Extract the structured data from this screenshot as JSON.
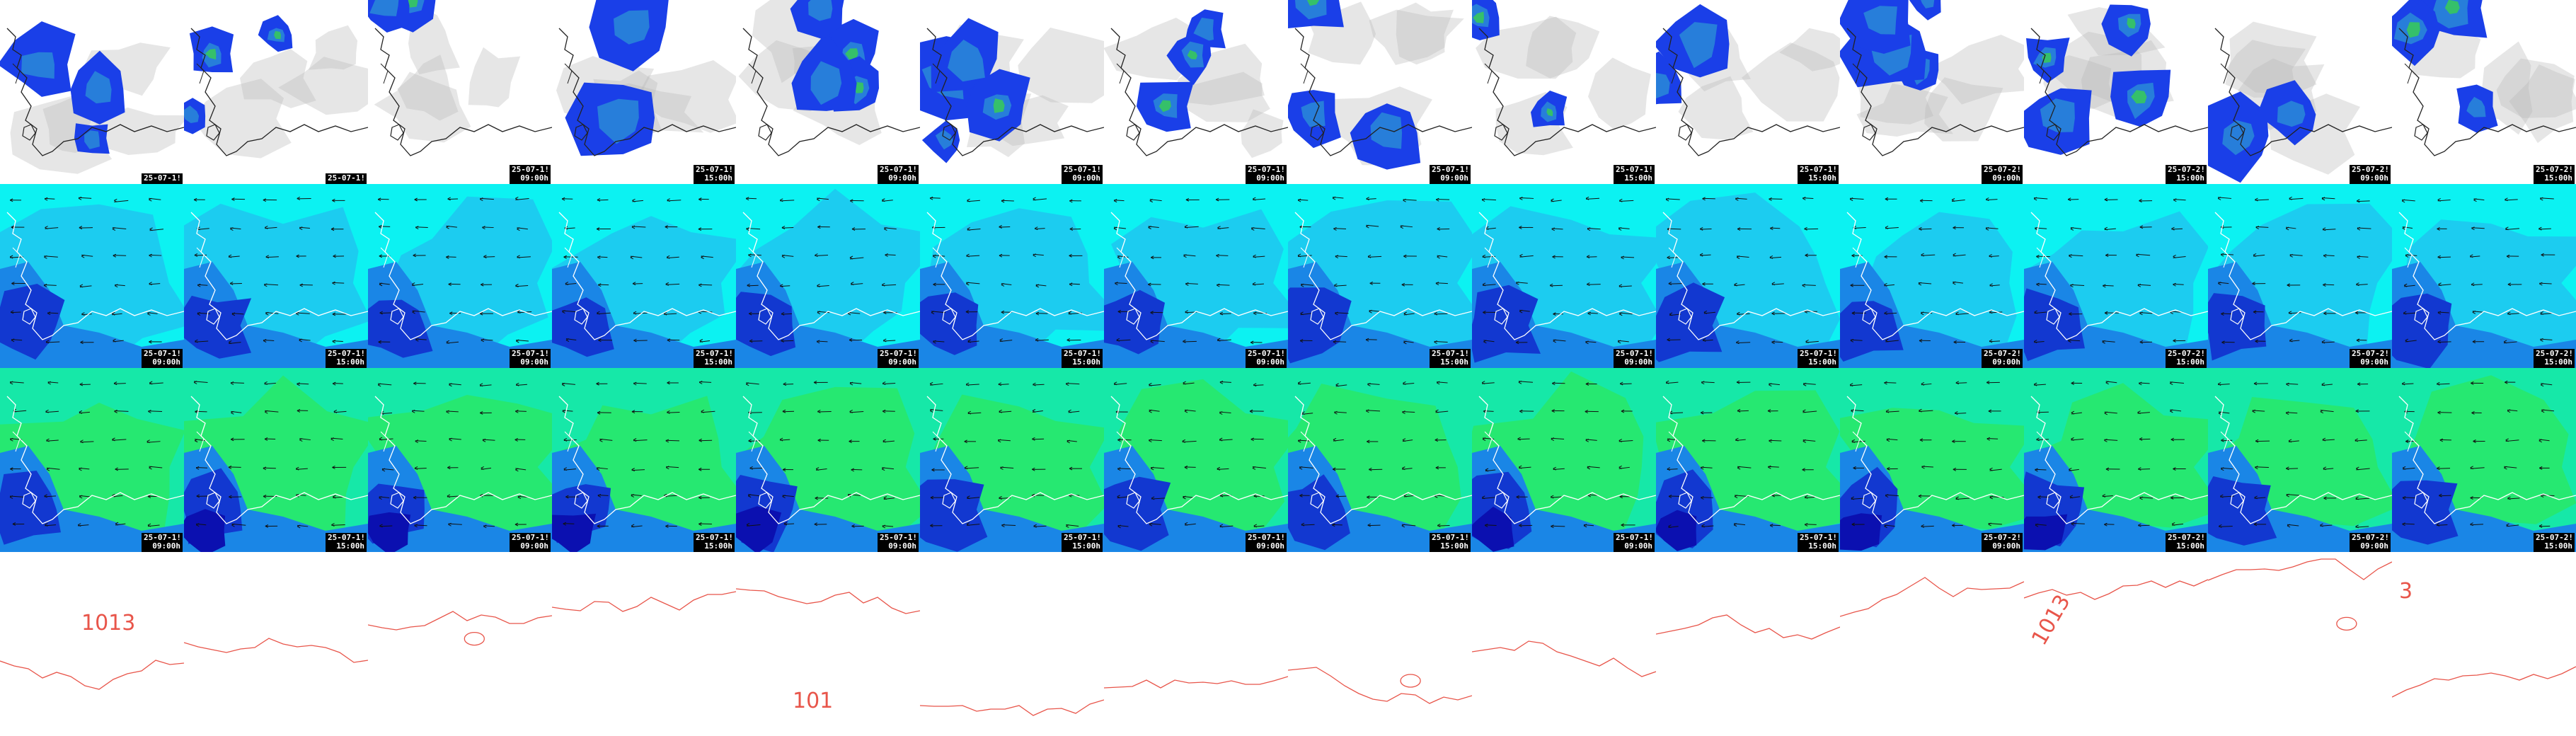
{
  "colors": {
    "precip_blue": "#1a3fe8",
    "precip_mid": "#2b8fd6",
    "precip_green": "#35c06a",
    "precip_bright": "#56e03a",
    "cloud_grey": "#b8b8b8",
    "sea_cyan": "#0cf2f2",
    "light_blue": "#1ec8f0",
    "mid_blue": "#1a86e6",
    "deep_blue": "#1238d0",
    "navy": "#0b10b0",
    "aqua_green": "#16e8a8",
    "green": "#28e86a",
    "lime": "#8ae020",
    "yellow_green": "#c8f000",
    "isobar_red": "#e8554a",
    "coast_line": "#ffffff",
    "coast_line_dark": "#222222",
    "stamp_bg": "#000000",
    "stamp_fg": "#ffffff"
  },
  "rows": [
    {
      "kind": "precip",
      "tiles": [
        {
          "date": "25-07-1!",
          "time": ""
        },
        {
          "date": "25-07-1!",
          "time": ""
        },
        {
          "date": "25-07-1!",
          "time": "09:00h"
        },
        {
          "date": "25-07-1!",
          "time": "15:00h"
        },
        {
          "date": "25-07-1!",
          "time": "09:00h"
        },
        {
          "date": "25-07-1!",
          "time": "09:00h"
        },
        {
          "date": "25-07-1!",
          "time": "09:00h"
        },
        {
          "date": "25-07-1!",
          "time": "09:00h"
        },
        {
          "date": "25-07-1!",
          "time": "15:00h"
        },
        {
          "date": "25-07-1!",
          "time": "15:00h"
        },
        {
          "date": "25-07-2!",
          "time": "09:00h"
        },
        {
          "date": "25-07-2!",
          "time": "15:00h"
        },
        {
          "date": "25-07-2!",
          "time": "09:00h"
        },
        {
          "date": "25-07-2!",
          "time": "15:00h"
        }
      ]
    },
    {
      "kind": "wind_lower",
      "tiles": [
        {
          "date": "25-07-1!",
          "time": "09:00h"
        },
        {
          "date": "25-07-1!",
          "time": "15:00h"
        },
        {
          "date": "25-07-1!",
          "time": "09:00h"
        },
        {
          "date": "25-07-1!",
          "time": "15:00h"
        },
        {
          "date": "25-07-1!",
          "time": "09:00h"
        },
        {
          "date": "25-07-1!",
          "time": "15:00h"
        },
        {
          "date": "25-07-1!",
          "time": "09:00h"
        },
        {
          "date": "25-07-1!",
          "time": "15:00h"
        },
        {
          "date": "25-07-1!",
          "time": "09:00h"
        },
        {
          "date": "25-07-1!",
          "time": "15:00h"
        },
        {
          "date": "25-07-2!",
          "time": "09:00h"
        },
        {
          "date": "25-07-2!",
          "time": "15:00h"
        },
        {
          "date": "25-07-2!",
          "time": "09:00h"
        },
        {
          "date": "25-07-2!",
          "time": "15:00h"
        }
      ]
    },
    {
      "kind": "wind_upper",
      "tiles": [
        {
          "date": "25-07-1!",
          "time": "09:00h"
        },
        {
          "date": "25-07-1!",
          "time": "15:00h"
        },
        {
          "date": "25-07-1!",
          "time": "09:00h"
        },
        {
          "date": "25-07-1!",
          "time": "15:00h"
        },
        {
          "date": "25-07-1!",
          "time": "09:00h"
        },
        {
          "date": "25-07-1!",
          "time": "15:00h"
        },
        {
          "date": "25-07-1!",
          "time": "09:00h"
        },
        {
          "date": "25-07-1!",
          "time": "15:00h"
        },
        {
          "date": "25-07-1!",
          "time": "09:00h"
        },
        {
          "date": "25-07-1!",
          "time": "15:00h"
        },
        {
          "date": "25-07-2!",
          "time": "09:00h"
        },
        {
          "date": "25-07-2!",
          "time": "15:00h"
        },
        {
          "date": "25-07-2!",
          "time": "09:00h"
        },
        {
          "date": "25-07-2!",
          "time": "15:00h"
        }
      ]
    },
    {
      "kind": "isobar",
      "labels": [
        "1013",
        "101",
        "1013",
        "3"
      ]
    }
  ]
}
